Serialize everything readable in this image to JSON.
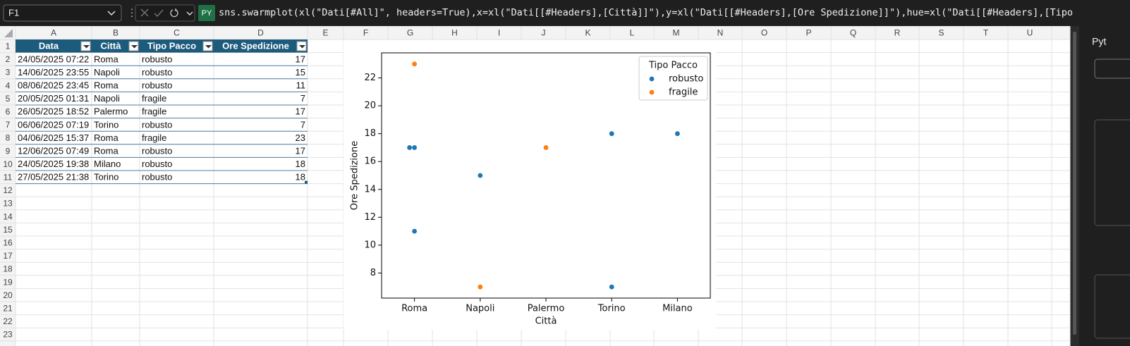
{
  "name_box": "F1",
  "formula_prefix": "PY",
  "formula": "sns.swarmplot(xl(\"Dati[#All]\", headers=True),x=xl(\"Dati[[#Headers],[Città]]\"),y=xl(\"Dati[[#Headers],[Ore Spedizione]]\"),hue=xl(\"Dati[[#Headers],[Tipo Pacco]]\"))",
  "side_panel_title": "Pyt",
  "columns": [
    "A",
    "B",
    "C",
    "D",
    "E",
    "F",
    "G",
    "H",
    "I",
    "J",
    "K",
    "L",
    "M",
    "N",
    "O",
    "P",
    "Q",
    "R",
    "S",
    "T",
    "U"
  ],
  "row_numbers": [
    1,
    2,
    3,
    4,
    5,
    6,
    7,
    8,
    9,
    10,
    11,
    12,
    13,
    14,
    15,
    16,
    17,
    18,
    19,
    20,
    21,
    22,
    23
  ],
  "table": {
    "headers": [
      "Data",
      "Città",
      "Tipo Pacco",
      "Ore Spedizione"
    ],
    "rows": [
      [
        "24/05/2025 07:22",
        "Roma",
        "robusto",
        17
      ],
      [
        "14/06/2025 23:55",
        "Napoli",
        "robusto",
        15
      ],
      [
        "08/06/2025 23:45",
        "Roma",
        "robusto",
        11
      ],
      [
        "20/05/2025 01:31",
        "Napoli",
        "fragile",
        7
      ],
      [
        "26/05/2025 18:52",
        "Palermo",
        "fragile",
        17
      ],
      [
        "06/06/2025 07:19",
        "Torino",
        "robusto",
        7
      ],
      [
        "04/06/2025 15:37",
        "Roma",
        "fragile",
        23
      ],
      [
        "12/06/2025 07:49",
        "Roma",
        "robusto",
        17
      ],
      [
        "24/05/2025 19:38",
        "Milano",
        "robusto",
        18
      ],
      [
        "27/05/2025 21:38",
        "Torino",
        "robusto",
        18
      ]
    ]
  },
  "chart_data": {
    "type": "swarm",
    "x_label": "Città",
    "y_label": "Ore Spedizione",
    "categories": [
      "Roma",
      "Napoli",
      "Palermo",
      "Torino",
      "Milano"
    ],
    "legend_title": "Tipo Pacco",
    "legend_loc": "upper right",
    "series": [
      {
        "name": "robusto",
        "color": "#1f77b4",
        "x": [
          "Roma",
          "Napoli",
          "Roma",
          "Torino",
          "Roma",
          "Milano",
          "Torino"
        ],
        "values": [
          17,
          15,
          11,
          7,
          17,
          18,
          18
        ]
      },
      {
        "name": "fragile",
        "color": "#ff7f0e",
        "x": [
          "Napoli",
          "Palermo",
          "Roma"
        ],
        "values": [
          7,
          17,
          23
        ]
      }
    ],
    "ylim": [
      6.2,
      23.8
    ],
    "yticks": [
      8,
      10,
      12,
      14,
      16,
      18,
      20,
      22
    ]
  }
}
